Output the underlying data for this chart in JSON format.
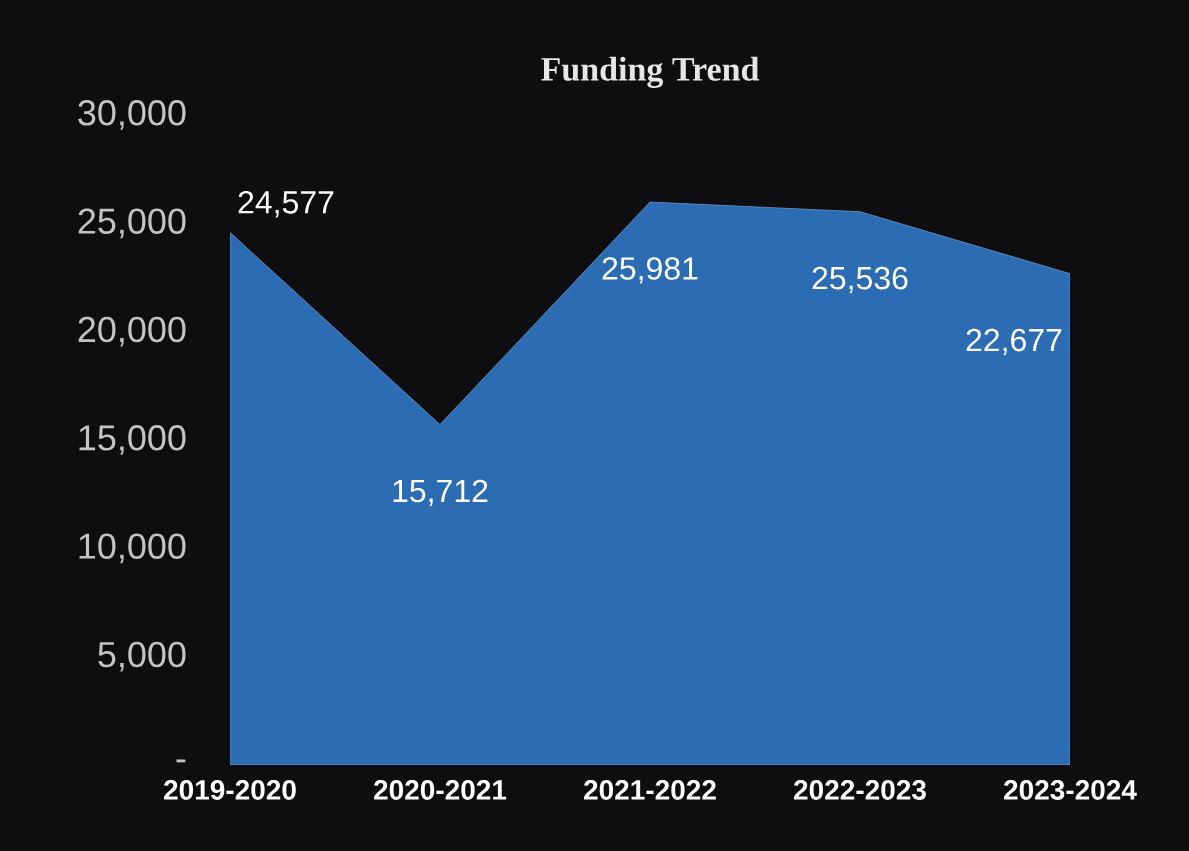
{
  "chart_data": {
    "type": "area",
    "title": "Funding Trend",
    "categories": [
      "2019-2020",
      "2020-2021",
      "2021-2022",
      "2022-2023",
      "2023-2024"
    ],
    "values": [
      24577,
      15712,
      25981,
      25536,
      22677
    ],
    "color": "#2b6cb3",
    "ylim": [
      0,
      30000
    ],
    "yticks": [
      {
        "value": 0,
        "label": "-"
      },
      {
        "value": 5000,
        "label": "5,000"
      },
      {
        "value": 10000,
        "label": "10,000"
      },
      {
        "value": 15000,
        "label": "15,000"
      },
      {
        "value": 20000,
        "label": "20,000"
      },
      {
        "value": 25000,
        "label": "25,000"
      },
      {
        "value": 30000,
        "label": "30,000"
      }
    ],
    "value_labels": [
      "24,577",
      "15,712",
      "25,981",
      "25,536",
      "22,677"
    ],
    "grid": false
  }
}
